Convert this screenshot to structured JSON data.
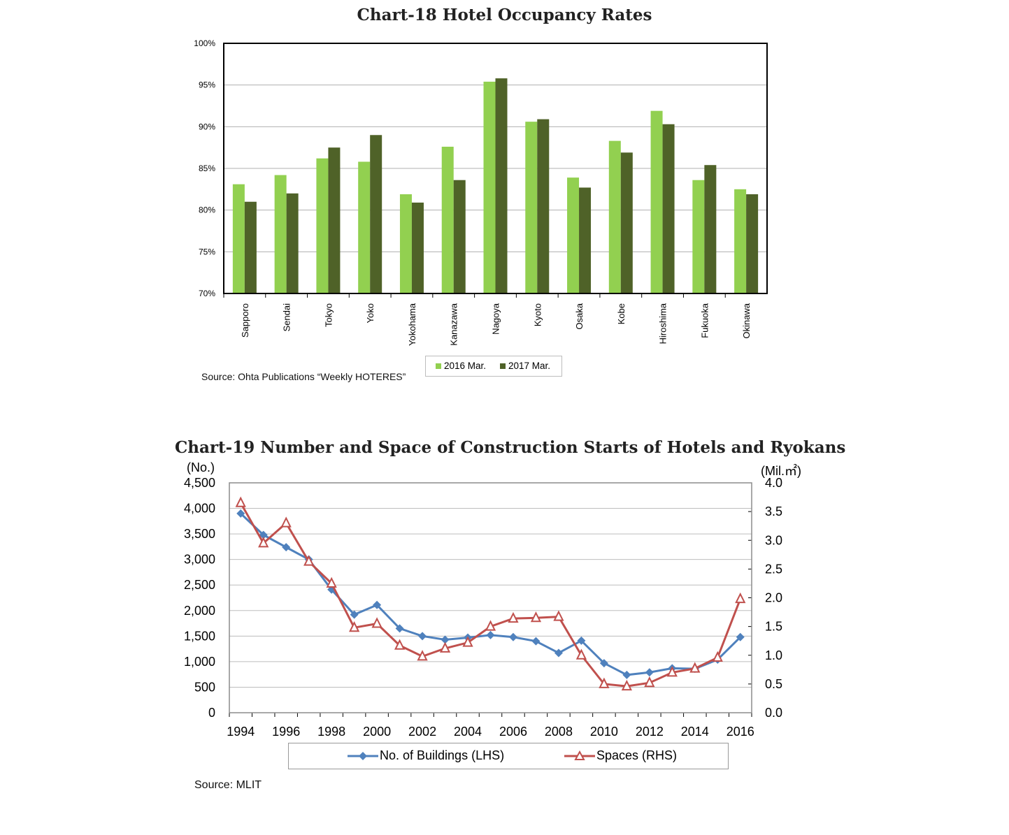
{
  "chart_data": [
    {
      "type": "bar",
      "title": "Chart-18 Hotel Occupancy Rates",
      "categories": [
        "Sapporo",
        "Sendai",
        "Tokyo",
        "Yoko",
        "Yokohama",
        "Kanazawa",
        "Nagoya",
        "Kyoto",
        "Osaka",
        "Kobe",
        "Hiroshima",
        "Fukuoka",
        "Okinawa"
      ],
      "series": [
        {
          "name": "2016 Mar.",
          "color": "#92d050",
          "values": [
            83.1,
            84.2,
            86.2,
            85.8,
            81.9,
            87.6,
            95.4,
            90.6,
            83.9,
            88.3,
            91.9,
            83.6,
            82.5
          ]
        },
        {
          "name": "2017 Mar.",
          "color": "#4f6228",
          "values": [
            81.0,
            82.0,
            87.5,
            89.0,
            80.9,
            83.6,
            95.8,
            90.9,
            82.7,
            86.9,
            90.3,
            85.4,
            81.9
          ]
        }
      ],
      "ylim": [
        70,
        100
      ],
      "yticks": [
        "70%",
        "75%",
        "80%",
        "85%",
        "90%",
        "95%",
        "100%"
      ],
      "grid": true,
      "legend_position": "bottom",
      "source": "Source: Ohta Publications “Weekly HOTERES”"
    },
    {
      "type": "line",
      "title": "Chart-19 Number and Space of Construction Starts of Hotels and Ryokans",
      "y_left_unit": "(No.)",
      "y_right_unit": "(Mil.㎡)",
      "x": [
        1994,
        1995,
        1996,
        1997,
        1998,
        1999,
        2000,
        2001,
        2002,
        2003,
        2004,
        2005,
        2006,
        2007,
        2008,
        2009,
        2010,
        2011,
        2012,
        2013,
        2014,
        2015,
        2016
      ],
      "xticks": [
        "1994",
        "1996",
        "1998",
        "2000",
        "2002",
        "2004",
        "2006",
        "2008",
        "2010",
        "2012",
        "2014",
        "2016"
      ],
      "ylim_left": [
        0,
        4500
      ],
      "yticks_left": [
        "0",
        "500",
        "1,000",
        "1,500",
        "2,000",
        "2,500",
        "3,000",
        "3,500",
        "4,000",
        "4,500"
      ],
      "ylim_right": [
        0,
        4.0
      ],
      "yticks_right": [
        "0.0",
        "0.5",
        "1.0",
        "1.5",
        "2.0",
        "2.5",
        "3.0",
        "3.5",
        "4.0"
      ],
      "series": [
        {
          "name": "No. of Buildings (LHS)",
          "axis": "left",
          "color": "#4f81bd",
          "marker": "diamond",
          "values": [
            3900,
            3480,
            3240,
            3000,
            2410,
            1920,
            2110,
            1650,
            1500,
            1430,
            1470,
            1520,
            1480,
            1400,
            1170,
            1410,
            970,
            740,
            790,
            870,
            860,
            1040,
            1480
          ]
        },
        {
          "name": "Spaces (RHS)",
          "axis": "right",
          "color": "#c0504d",
          "marker": "triangle",
          "values": [
            3.65,
            2.95,
            3.3,
            2.63,
            2.25,
            1.48,
            1.55,
            1.17,
            0.98,
            1.12,
            1.22,
            1.5,
            1.64,
            1.65,
            1.67,
            1.0,
            0.5,
            0.46,
            0.52,
            0.7,
            0.77,
            0.96,
            1.98
          ]
        }
      ],
      "grid": true,
      "legend_position": "bottom",
      "source": "Source: MLIT"
    }
  ]
}
